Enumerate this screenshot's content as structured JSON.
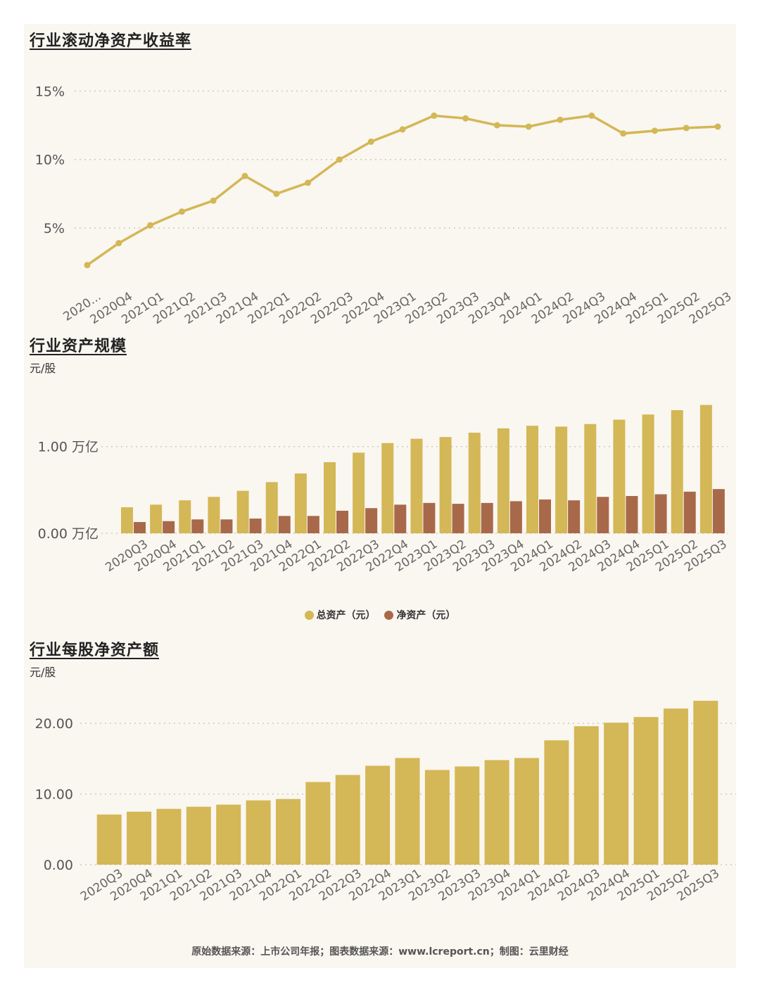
{
  "colors": {
    "gold": "#d4b756",
    "brown": "#a8694a",
    "grid": "#cfcab8",
    "line": "#d4b756"
  },
  "chart_data": [
    {
      "type": "line",
      "title": "行业滚动净资产收益率",
      "categories": [
        "2020...",
        "2020Q4",
        "2021Q1",
        "2021Q2",
        "2021Q3",
        "2021Q4",
        "2022Q1",
        "2022Q2",
        "2022Q3",
        "2022Q4",
        "2023Q1",
        "2023Q2",
        "2023Q3",
        "2023Q4",
        "2024Q1",
        "2024Q2",
        "2024Q3",
        "2024Q4",
        "2025Q1",
        "2025Q2",
        "2025Q3"
      ],
      "values": [
        2.3,
        3.9,
        5.2,
        6.2,
        7.0,
        8.8,
        7.5,
        8.3,
        10.0,
        11.3,
        12.2,
        13.2,
        13.0,
        12.5,
        12.4,
        12.9,
        13.2,
        11.9,
        12.1,
        12.3,
        12.4
      ],
      "yticks": [
        5,
        10,
        15
      ],
      "ytick_labels": [
        "5%",
        "10%",
        "15%"
      ],
      "ylim": [
        0.8,
        16.3
      ]
    },
    {
      "type": "bar",
      "title": "行业资产规模",
      "unit": "元/股",
      "categories": [
        "2020Q3",
        "2020Q4",
        "2021Q1",
        "2021Q2",
        "2021Q3",
        "2021Q4",
        "2022Q1",
        "2022Q2",
        "2022Q3",
        "2022Q4",
        "2023Q1",
        "2023Q2",
        "2023Q3",
        "2023Q4",
        "2024Q1",
        "2024Q2",
        "2024Q3",
        "2024Q4",
        "2025Q1",
        "2025Q2",
        "2025Q3"
      ],
      "series": [
        {
          "name": "总资产（元）",
          "color": "#d4b756",
          "values": [
            0.3,
            0.33,
            0.38,
            0.42,
            0.49,
            0.59,
            0.69,
            0.82,
            0.93,
            1.04,
            1.09,
            1.11,
            1.16,
            1.21,
            1.24,
            1.23,
            1.26,
            1.31,
            1.37,
            1.42,
            1.48
          ]
        },
        {
          "name": "净资产（元）",
          "color": "#a8694a",
          "values": [
            0.13,
            0.14,
            0.16,
            0.16,
            0.17,
            0.2,
            0.2,
            0.26,
            0.29,
            0.33,
            0.35,
            0.34,
            0.35,
            0.37,
            0.39,
            0.38,
            0.42,
            0.43,
            0.45,
            0.48,
            0.51
          ]
        }
      ],
      "yticks": [
        0,
        1
      ],
      "ytick_labels": [
        "0.00 万亿",
        "1.00 万亿"
      ],
      "ylim": [
        0,
        1.72
      ]
    },
    {
      "type": "bar",
      "title": "行业每股净资产额",
      "unit": "元/股",
      "categories": [
        "2020Q3",
        "2020Q4",
        "2021Q1",
        "2021Q2",
        "2021Q3",
        "2021Q4",
        "2022Q1",
        "2022Q2",
        "2022Q3",
        "2022Q4",
        "2023Q1",
        "2023Q2",
        "2023Q3",
        "2023Q4",
        "2024Q1",
        "2024Q2",
        "2024Q3",
        "2024Q4",
        "2025Q1",
        "2025Q2",
        "2025Q3"
      ],
      "values": [
        7.1,
        7.5,
        7.9,
        8.2,
        8.5,
        9.1,
        9.3,
        11.7,
        12.7,
        14.0,
        15.1,
        13.4,
        13.9,
        14.8,
        15.1,
        17.6,
        19.6,
        20.1,
        20.9,
        22.1,
        23.2
      ],
      "yticks": [
        0,
        10,
        20
      ],
      "ytick_labels": [
        "0.00",
        "10.00",
        "20.00"
      ],
      "ylim": [
        0,
        25
      ]
    }
  ],
  "footer": "原始数据来源：上市公司年报；图表数据来源：www.lcreport.cn；制图：云里财经"
}
